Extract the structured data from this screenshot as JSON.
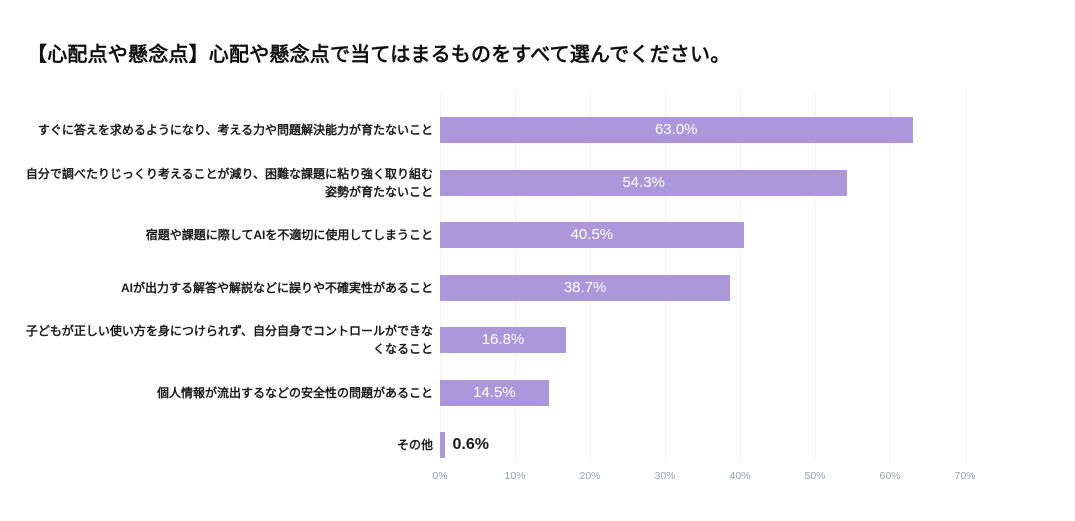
{
  "header": {
    "title": "【心配点や懸念点】心配や懸念点で当てはまるものをすべて選んでください。"
  },
  "chart_data": {
    "type": "bar",
    "orientation": "horizontal",
    "title": "【心配点や懸念点】心配や懸念点で当てはまるものをすべて選んでください。",
    "categories": [
      "すぐに答えを求めるようになり、考える力や問題解決能力が育たないこと",
      "自分で調べたりじっくり考えることが減り、困難な課題に粘り強く取り組む姿勢が育たないこと",
      "宿題や課題に際してAIを不適切に使用してしまうこと",
      "AIが出力する解答や解説などに誤りや不確実性があること",
      "子どもが正しい使い方を身につけられず、自分自身でコントロールができなくなること",
      "個人情報が流出するなどの安全性の問題があること",
      "その他"
    ],
    "category_lines": [
      [
        "すぐに答えを求めるようになり、考える力や問題解決能力が育たないこと"
      ],
      [
        "自分で調べたりじっくり考えることが減り、困難な課題に粘り強く取り組む",
        "姿勢が育たないこと"
      ],
      [
        "宿題や課題に際してAIを不適切に使用してしまうこと"
      ],
      [
        "AIが出力する解答や解説などに誤りや不確実性があること"
      ],
      [
        "子どもが正しい使い方を身につけられず、自分自身でコントロールができな",
        "くなること"
      ],
      [
        "個人情報が流出するなどの安全性の問題があること"
      ],
      [
        "その他"
      ]
    ],
    "values": [
      63.0,
      54.3,
      40.5,
      38.7,
      16.8,
      14.5,
      0.6
    ],
    "value_labels": [
      "63.0%",
      "54.3%",
      "40.5%",
      "38.7%",
      "16.8%",
      "14.5%",
      "0.6%"
    ],
    "xlabel": "",
    "ylabel": "",
    "xlim": [
      0,
      70
    ],
    "x_tick_labels": [
      "0%",
      "10%",
      "20%",
      "30%",
      "40%",
      "50%",
      "60%",
      "70%"
    ],
    "grid": true,
    "legend": "none",
    "colors": {
      "bar": "#ab97d9",
      "value_label_inside": "#ffffff",
      "value_label_outside": "#1a1a1a",
      "gridline": "#f2f2f5",
      "tick_label": "#99a1b0",
      "title_text": "#111111",
      "category_text": "#1a1a1a",
      "background": "#ffffff"
    }
  }
}
